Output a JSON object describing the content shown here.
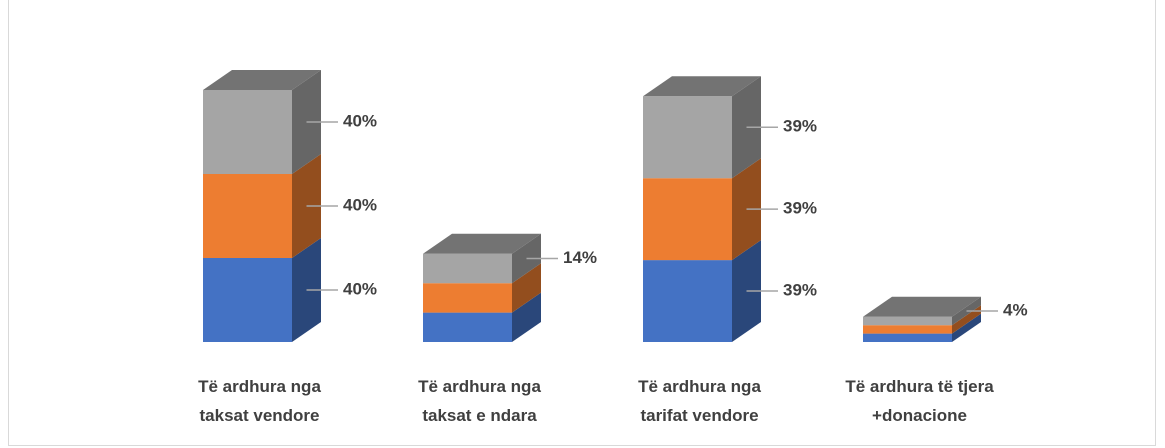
{
  "chart_data": {
    "type": "bar3d-stacked",
    "categories": [
      "Të ardhura nga\ntaksat vendore",
      "Të ardhura nga\ntaksat e ndara",
      "Të ardhura nga\ntarifat vendore",
      "Të ardhura të tjera\n+donacione"
    ],
    "series": [
      {
        "color": "#4472c4",
        "values": [
          40,
          14,
          39,
          4
        ],
        "value_labels": [
          "40%",
          null,
          "39%",
          null
        ]
      },
      {
        "color": "#ed7d31",
        "values": [
          40,
          14,
          39,
          4
        ],
        "value_labels": [
          "40%",
          null,
          "39%",
          null
        ]
      },
      {
        "color": "#a5a5a5",
        "values": [
          40,
          14,
          39,
          4
        ],
        "value_labels": [
          "40%",
          "14%",
          "39%",
          "4%"
        ]
      }
    ]
  }
}
